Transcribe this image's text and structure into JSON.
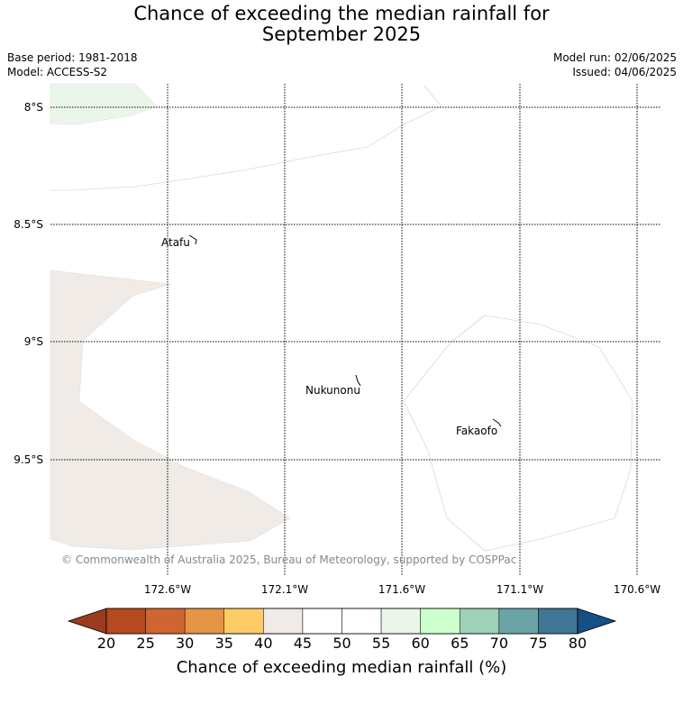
{
  "title_line1": "Chance of exceeding the median rainfall for",
  "title_line2": "September 2025",
  "base_period": "Base period: 1981-2018",
  "model": "Model: ACCESS-S2",
  "model_run": "Model run: 02/06/2025",
  "issued": "Issued: 04/06/2025",
  "lat_labels": [
    "8°S",
    "8.5°S",
    "9°S",
    "9.5°S"
  ],
  "lon_labels": [
    "172.6°W",
    "172.1°W",
    "171.6°W",
    "171.1°W",
    "170.6°W"
  ],
  "places": [
    "Atafu",
    "Nukunonu",
    "Fakaofo"
  ],
  "copyright": "© Commonwealth of Australia 2025, Bureau of Meteorology, supported by COSPPac",
  "colorbar": {
    "label": "Chance of exceeding median rainfall (%)",
    "ticks": [
      "20",
      "25",
      "30",
      "35",
      "40",
      "45",
      "50",
      "55",
      "60",
      "65",
      "70",
      "75",
      "80"
    ],
    "colors": [
      "#9c3a1f",
      "#b5491f",
      "#cf6530",
      "#e49445",
      "#fdcc66",
      "#f0ebe6",
      "#ffffff",
      "#ffffff",
      "#eaf6ea",
      "#ccffcc",
      "#9fd1b9",
      "#6ba4a6",
      "#3f7696",
      "#154f84"
    ]
  }
}
